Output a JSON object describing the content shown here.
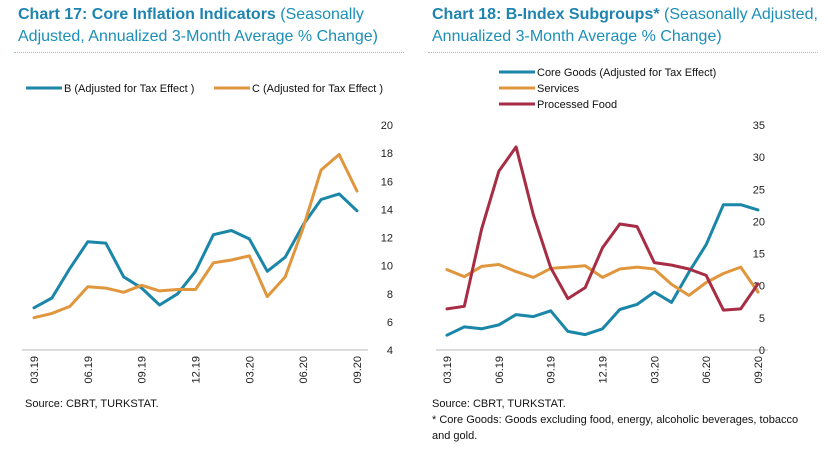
{
  "charts": [
    {
      "title_main": "Chart 17: Core Inflation Indicators",
      "title_sub": "(Seasonally Adjusted, Annualized 3-Month Average % Change)",
      "source": "Source: CBRT, TURKSTAT.",
      "note": "",
      "accent": "#1b8fb8"
    },
    {
      "title_main": "Chart 18: B-Index Subgroups*",
      "title_sub": "(Seasonally Adjusted, Annualized 3-Month Average % Change)",
      "source": "Source: CBRT, TURKSTAT.",
      "note": "* Core Goods: Goods excluding food, energy, alcoholic beverages, tobacco and gold.",
      "accent": "#1b8fb8"
    }
  ],
  "chart_data": [
    {
      "type": "line",
      "categories": [
        "03.19",
        "04.19",
        "05.19",
        "06.19",
        "07.19",
        "08.19",
        "09.19",
        "10.19",
        "11.19",
        "12.19",
        "01.20",
        "02.20",
        "03.20",
        "04.20",
        "05.20",
        "06.20",
        "07.20",
        "08.20",
        "09.20"
      ],
      "tick_labels": [
        "03.19",
        "06.19",
        "09.19",
        "12.19",
        "03.20",
        "06.20",
        "09.20"
      ],
      "series": [
        {
          "name": "B (Adjusted for Tax Effect )",
          "color": "#1a86a8",
          "values": [
            7.0,
            7.7,
            9.8,
            11.7,
            11.6,
            9.2,
            8.4,
            7.2,
            8.0,
            9.6,
            12.2,
            12.5,
            11.9,
            9.6,
            10.6,
            12.9,
            14.7,
            15.1,
            13.9
          ]
        },
        {
          "name": "C (Adjusted for Tax Effect )",
          "color": "#e0963c",
          "values": [
            6.3,
            6.6,
            7.1,
            8.5,
            8.4,
            8.1,
            8.6,
            8.2,
            8.3,
            8.3,
            10.2,
            10.4,
            10.7,
            7.8,
            9.2,
            12.7,
            16.8,
            17.9,
            15.3
          ]
        }
      ],
      "ylim": [
        4,
        20
      ],
      "yticks": [
        4,
        6,
        8,
        10,
        12,
        14,
        16,
        18,
        20
      ],
      "y_axis_side": "right",
      "legend": "top",
      "grid": false
    },
    {
      "type": "line",
      "categories": [
        "03.19",
        "04.19",
        "05.19",
        "06.19",
        "07.19",
        "08.19",
        "09.19",
        "10.19",
        "11.19",
        "12.19",
        "01.20",
        "02.20",
        "03.20",
        "04.20",
        "05.20",
        "06.20",
        "07.20",
        "08.20",
        "09.20"
      ],
      "tick_labels": [
        "03.19",
        "06.19",
        "09.19",
        "12.19",
        "03.20",
        "06.20",
        "09.20"
      ],
      "series": [
        {
          "name": "Core Goods (Adjusted for Tax Effect)",
          "color": "#1a86a8",
          "values": [
            2.3,
            3.6,
            3.3,
            3.9,
            5.5,
            5.2,
            6.1,
            2.9,
            2.4,
            3.3,
            6.3,
            7.1,
            9.0,
            7.4,
            12.1,
            16.4,
            22.6,
            22.6,
            21.8
          ]
        },
        {
          "name": "Services",
          "color": "#e0963c",
          "values": [
            12.5,
            11.4,
            13.0,
            13.3,
            12.2,
            11.3,
            12.7,
            12.9,
            13.1,
            11.3,
            12.6,
            12.9,
            12.6,
            10.2,
            8.5,
            10.5,
            11.9,
            12.9,
            9.0
          ]
        },
        {
          "name": "Processed Food",
          "color": "#a62d44",
          "values": [
            6.4,
            6.8,
            18.8,
            27.8,
            31.6,
            21.0,
            12.8,
            8.0,
            9.7,
            15.9,
            19.6,
            19.2,
            13.6,
            13.2,
            12.6,
            11.6,
            6.2,
            6.4,
            10.3
          ]
        }
      ],
      "ylim": [
        0,
        35
      ],
      "yticks": [
        0,
        5,
        10,
        15,
        20,
        25,
        30,
        35
      ],
      "y_axis_side": "right",
      "legend": "top-left",
      "grid": false
    }
  ]
}
